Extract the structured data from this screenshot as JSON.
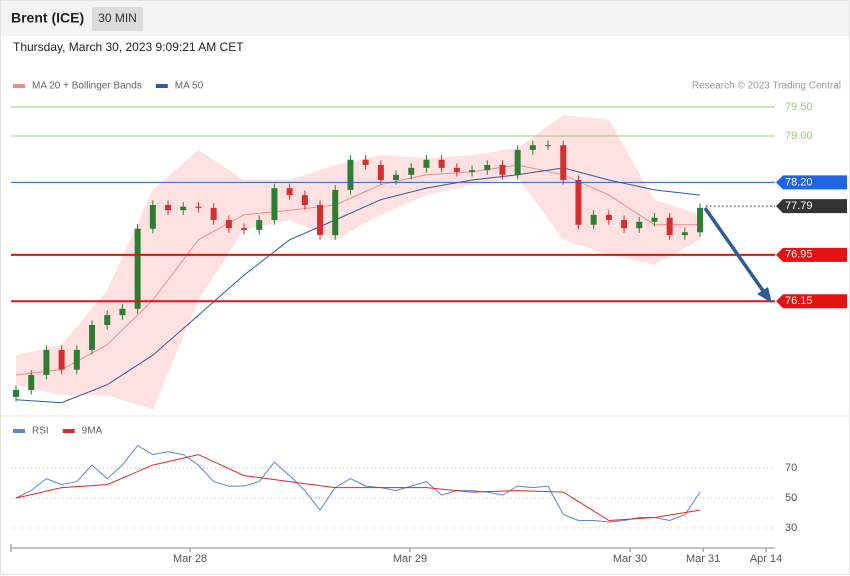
{
  "chart_data": [
    {
      "type": "candlestick",
      "title": "Brent (ICE)",
      "interval": "30 MIN",
      "subtitle": "Thursday, March 30, 2023 9:09:21 AM CET",
      "source": "Research © 2023 Trading Central",
      "xlim": [
        -0.33,
        49.93
      ],
      "ylim": [
        74.24,
        79.62
      ],
      "up_color": "#2e7d32",
      "down_color": "#d32f2f",
      "open": [
        74.5,
        74.62,
        74.88,
        75.31,
        74.97,
        75.31,
        75.74,
        75.91,
        76.02,
        77.4,
        77.81,
        77.72,
        77.78,
        77.76,
        77.55,
        77.41,
        77.38,
        77.55,
        78.1,
        77.98,
        77.81,
        77.29,
        78.07,
        78.59,
        78.5,
        78.24,
        78.33,
        78.45,
        78.59,
        78.45,
        78.38,
        78.41,
        78.5,
        78.33,
        78.76,
        78.84,
        78.84,
        78.24,
        77.47,
        77.64,
        77.55,
        77.41,
        77.52,
        77.59,
        77.29,
        77.34
      ],
      "high": [
        74.7,
        74.96,
        75.39,
        75.39,
        75.39,
        75.82,
        75.99,
        76.1,
        77.48,
        77.89,
        77.89,
        77.86,
        77.86,
        77.84,
        77.63,
        77.49,
        77.63,
        78.18,
        78.18,
        78.06,
        77.89,
        78.15,
        78.67,
        78.67,
        78.58,
        78.41,
        78.53,
        78.67,
        78.67,
        78.53,
        78.49,
        78.58,
        78.58,
        78.84,
        78.92,
        78.92,
        78.92,
        78.32,
        77.72,
        77.72,
        77.63,
        77.6,
        77.67,
        77.67,
        77.42,
        77.84
      ],
      "low": [
        74.42,
        74.54,
        74.8,
        74.89,
        74.89,
        75.23,
        75.66,
        75.83,
        75.94,
        77.32,
        77.64,
        77.64,
        77.68,
        77.47,
        77.33,
        77.3,
        77.3,
        77.47,
        77.9,
        77.73,
        77.21,
        77.21,
        77.99,
        78.42,
        78.16,
        78.16,
        78.25,
        78.37,
        78.37,
        78.3,
        78.3,
        78.33,
        78.25,
        78.25,
        78.68,
        78.76,
        78.16,
        77.39,
        77.39,
        77.47,
        77.33,
        77.33,
        77.44,
        77.21,
        77.21,
        77.26
      ],
      "close": [
        74.62,
        74.88,
        75.31,
        74.97,
        75.31,
        75.74,
        75.91,
        76.02,
        77.4,
        77.81,
        77.72,
        77.78,
        77.76,
        77.55,
        77.41,
        77.38,
        77.55,
        78.1,
        77.98,
        77.81,
        77.29,
        78.07,
        78.59,
        78.5,
        78.24,
        78.33,
        78.45,
        78.59,
        78.45,
        78.38,
        78.41,
        78.5,
        78.33,
        78.76,
        78.84,
        78.84,
        78.24,
        77.47,
        77.64,
        77.55,
        77.41,
        77.52,
        77.59,
        77.29,
        77.34,
        77.76
      ],
      "series": [
        {
          "name": "MA 20 + Bollinger Bands",
          "color": "#f28b8b",
          "band_color": "#ffd9d9",
          "x": [
            0,
            3,
            6,
            9,
            12,
            15,
            18,
            21,
            24,
            27,
            30,
            33,
            36,
            39,
            42,
            45
          ],
          "values": [
            74.88,
            74.97,
            75.4,
            76.17,
            77.21,
            77.64,
            77.72,
            77.81,
            78.16,
            78.33,
            78.38,
            78.5,
            78.33,
            77.98,
            77.47,
            77.47
          ],
          "upper": [
            75.22,
            75.4,
            76.34,
            78.07,
            78.76,
            78.24,
            78.24,
            78.5,
            78.67,
            78.62,
            78.67,
            78.79,
            79.36,
            79.28,
            77.9,
            77.64
          ],
          "lower": [
            74.71,
            74.53,
            74.53,
            74.28,
            76.17,
            77.38,
            77.55,
            77.21,
            77.64,
            77.98,
            78.16,
            78.28,
            77.21,
            76.95,
            76.78,
            77.21
          ]
        },
        {
          "name": "MA 50",
          "color": "#2f5b98",
          "x": [
            0,
            3,
            6,
            9,
            12,
            15,
            18,
            21,
            24,
            27,
            30,
            33,
            36,
            39,
            42,
            45
          ],
          "values": [
            74.45,
            74.4,
            74.71,
            75.22,
            75.91,
            76.6,
            77.21,
            77.55,
            77.9,
            78.1,
            78.24,
            78.33,
            78.45,
            78.24,
            78.07,
            77.98
          ]
        }
      ],
      "levels": [
        {
          "value": 79.5,
          "label": "79.50",
          "color": "#9ccc7a",
          "boxed": false,
          "dotted": false,
          "width": 1
        },
        {
          "value": 79.0,
          "label": "79.00",
          "color": "#9ccc7a",
          "boxed": false,
          "dotted": false,
          "width": 1
        },
        {
          "value": 78.2,
          "label": "78.20",
          "color": "#1f63e6",
          "boxed": true,
          "dotted": false,
          "width": 1
        },
        {
          "value": 77.79,
          "label": "77.79",
          "color": "#333333",
          "boxed": true,
          "dotted": true,
          "width": 1
        },
        {
          "value": 76.95,
          "label": "76.95",
          "color": "#e31212",
          "boxed": true,
          "dotted": false,
          "width": 2
        },
        {
          "value": 76.15,
          "label": "76.15",
          "color": "#e31212",
          "boxed": true,
          "dotted": false,
          "width": 2
        }
      ]
    },
    {
      "type": "line",
      "xlim": [
        -0.33,
        49.93
      ],
      "ylim": [
        18.7,
        88.7
      ],
      "yticks": [
        70,
        50,
        30
      ],
      "xticks": [
        {
          "value": 11.45,
          "label": "Mar 28"
        },
        {
          "value": 25.92,
          "label": "Mar 29"
        },
        {
          "value": 40.39,
          "label": "Mar 30"
        },
        {
          "value": 45.2,
          "label": "Mar 31"
        },
        {
          "value": 49.34,
          "label": "Apr 14"
        }
      ],
      "series": [
        {
          "name": "RSI",
          "color": "#5b86d9",
          "x": [
            0,
            1,
            2,
            3,
            4,
            5,
            6,
            7,
            8,
            9,
            10,
            11,
            12,
            13,
            14,
            15,
            16,
            17,
            18,
            19,
            20,
            21,
            22,
            23,
            24,
            25,
            26,
            27,
            28,
            29,
            30,
            31,
            32,
            33,
            34,
            35,
            36,
            37,
            38,
            39,
            40,
            41,
            42,
            43,
            44,
            45
          ],
          "values": [
            50,
            55,
            63,
            59,
            61,
            72,
            63,
            72,
            85,
            79,
            81,
            79,
            72,
            61,
            58,
            58,
            61,
            74,
            65,
            55,
            42,
            57,
            63,
            58,
            57,
            55,
            58,
            61,
            52,
            55,
            55,
            54,
            52,
            58,
            57,
            58,
            39,
            35,
            35,
            34,
            35,
            37,
            37,
            35,
            39,
            54
          ]
        },
        {
          "name": "9MA",
          "color": "#e02828",
          "x": [
            0,
            3,
            6,
            9,
            12,
            15,
            18,
            21,
            24,
            27,
            30,
            33,
            36,
            39,
            42,
            45
          ],
          "values": [
            50,
            57,
            59,
            72,
            79,
            65,
            61,
            57,
            57,
            57,
            54,
            55,
            54,
            35,
            37,
            42
          ]
        }
      ]
    }
  ]
}
